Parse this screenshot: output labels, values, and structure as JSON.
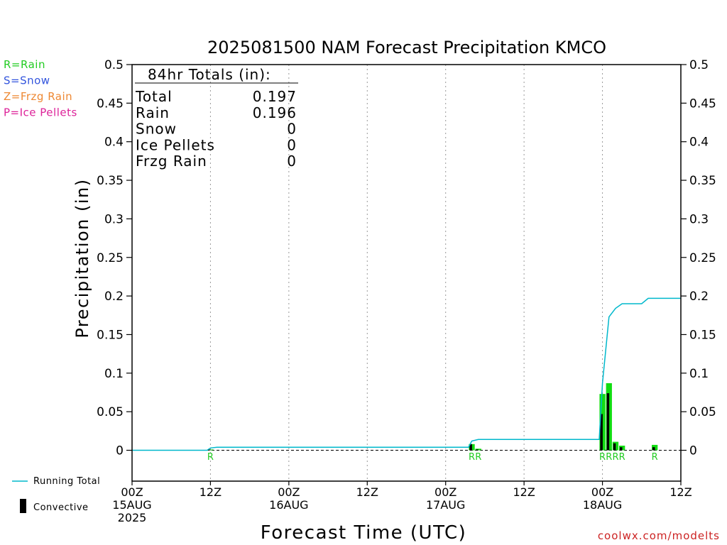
{
  "chart_data": {
    "type": "bar",
    "title": "2025081500 NAM Forecast Precipitation KMCO",
    "xlabel": "Forecast Time (UTC)",
    "ylabel": "Precipitation (in)",
    "ylim": [
      -0.04,
      0.5
    ],
    "xlim_hours": [
      0,
      84
    ],
    "y_ticks": [
      0,
      0.05,
      0.1,
      0.15,
      0.2,
      0.25,
      0.3,
      0.35,
      0.4,
      0.45,
      0.5
    ],
    "y_tick_labels": [
      "0",
      "0.05",
      "0.1",
      "0.15",
      "0.2",
      "0.25",
      "0.3",
      "0.35",
      "0.4",
      "0.45",
      "0.5"
    ],
    "x_ticks": [
      {
        "hour": 0,
        "lines": [
          "00Z",
          "15AUG",
          "2025"
        ]
      },
      {
        "hour": 12,
        "lines": [
          "12Z"
        ]
      },
      {
        "hour": 24,
        "lines": [
          "00Z",
          "16AUG"
        ]
      },
      {
        "hour": 36,
        "lines": [
          "12Z"
        ]
      },
      {
        "hour": 48,
        "lines": [
          "00Z",
          "17AUG"
        ]
      },
      {
        "hour": 60,
        "lines": [
          "12Z"
        ]
      },
      {
        "hour": 72,
        "lines": [
          "00Z",
          "18AUG"
        ]
      },
      {
        "hour": 84,
        "lines": [
          "12Z"
        ]
      }
    ],
    "grid": "vertical-dotted",
    "type_legend": [
      {
        "text": "R=Rain",
        "color": "#22cc22"
      },
      {
        "text": "S=Snow",
        "color": "#3355dd"
      },
      {
        "text": "Z=Frzg Rain",
        "color": "#ee8833"
      },
      {
        "text": "P=Ice Pellets",
        "color": "#dd2299"
      }
    ],
    "series_legend": [
      {
        "text": "Running Total",
        "color": "#00b8cc"
      },
      {
        "text": "Convective",
        "color": "#000000"
      }
    ],
    "totals_box": {
      "heading": "84hr Totals (in):",
      "rows": [
        {
          "label": "Total",
          "value": "0.197"
        },
        {
          "label": "Rain",
          "value": "0.196"
        },
        {
          "label": "Snow",
          "value": "0"
        },
        {
          "label": "Ice Pellets",
          "value": "0"
        },
        {
          "label": "Frzg Rain",
          "value": "0"
        }
      ]
    },
    "precip_bars": [
      {
        "hour": 12,
        "total": 0.001,
        "convective": 0.001
      },
      {
        "hour": 52,
        "total": 0.008,
        "convective": 0.008
      },
      {
        "hour": 53,
        "total": 0.002,
        "convective": 0.001
      },
      {
        "hour": 72,
        "total": 0.073,
        "convective": 0.047
      },
      {
        "hour": 73,
        "total": 0.087,
        "convective": 0.074
      },
      {
        "hour": 74,
        "total": 0.011,
        "convective": 0.009
      },
      {
        "hour": 75,
        "total": 0.006,
        "convective": 0.004
      },
      {
        "hour": 80,
        "total": 0.007,
        "convective": 0.004
      }
    ],
    "precip_type_labels": [
      {
        "hour": 12,
        "text": "R"
      },
      {
        "hour": 52,
        "text": "R"
      },
      {
        "hour": 53,
        "text": "R"
      },
      {
        "hour": 72,
        "text": "R"
      },
      {
        "hour": 73,
        "text": "R"
      },
      {
        "hour": 74,
        "text": "R"
      },
      {
        "hour": 75,
        "text": "R"
      },
      {
        "hour": 80,
        "text": "R"
      }
    ],
    "running_total": {
      "hours": [
        0,
        11.5,
        12,
        13,
        51.5,
        52,
        53,
        71.5,
        72,
        73,
        74,
        75,
        78,
        79,
        84
      ],
      "values": [
        0,
        0,
        0.003,
        0.004,
        0.004,
        0.012,
        0.014,
        0.014,
        0.087,
        0.173,
        0.184,
        0.19,
        0.19,
        0.197,
        0.197
      ]
    }
  },
  "credit": "coolwx.com/modelts",
  "colors": {
    "rain_bar": "#11dd11",
    "convective_bar": "#000000",
    "running_total": "#00b8cc",
    "rain_label": "#22cc22",
    "credit": "#cc2222"
  }
}
